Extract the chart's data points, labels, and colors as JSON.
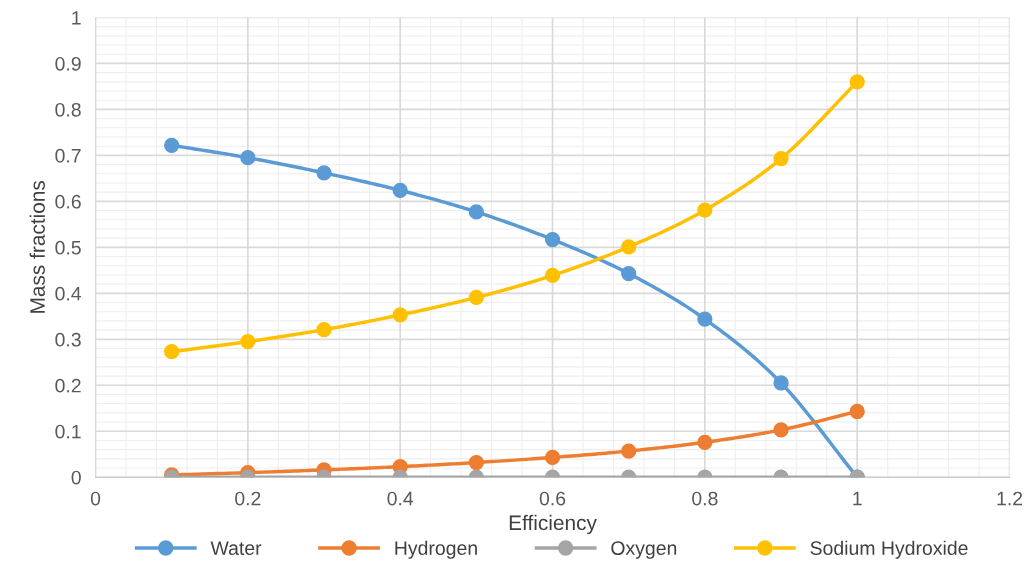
{
  "chart_data": {
    "type": "line",
    "xlabel": "Efficiency",
    "ylabel": "Mass fractions",
    "x": [
      0.1,
      0.2,
      0.3,
      0.4,
      0.5,
      0.6,
      0.7,
      0.8,
      0.9,
      1.0
    ],
    "series": [
      {
        "name": "Water",
        "color": "#5b9bd5",
        "values": [
          0.722,
          0.695,
          0.662,
          0.624,
          0.577,
          0.517,
          0.443,
          0.344,
          0.205,
          0
        ]
      },
      {
        "name": "Hydrogen",
        "color": "#ed7d31",
        "values": [
          0.005,
          0.01,
          0.016,
          0.023,
          0.032,
          0.043,
          0.057,
          0.076,
          0.103,
          0.143
        ]
      },
      {
        "name": "Oxygen",
        "color": "#a5a5a5",
        "values": [
          0,
          0,
          0,
          0,
          0,
          0,
          0,
          0,
          0,
          0
        ]
      },
      {
        "name": "Sodium Hydroxide",
        "color": "#ffc000",
        "values": [
          0.273,
          0.295,
          0.321,
          0.353,
          0.391,
          0.439,
          0.501,
          0.581,
          0.693,
          0.86
        ]
      }
    ],
    "xlim": [
      0,
      1.2
    ],
    "xticks": [
      0,
      {
        "value": 0.2,
        "label": "0.2"
      },
      {
        "value": 0.4,
        "label": "0.4"
      },
      {
        "value": 0.6,
        "label": "0.6"
      },
      {
        "value": 0.8,
        "label": "0.8"
      },
      1,
      {
        "value": 1.2,
        "label": "1.2"
      }
    ],
    "ylim": [
      0,
      1
    ],
    "yticks": [
      0,
      {
        "value": 0.1,
        "label": "0.1"
      },
      {
        "value": 0.2,
        "label": "0.2"
      },
      {
        "value": 0.3,
        "label": "0.3"
      },
      {
        "value": 0.4,
        "label": "0.4"
      },
      {
        "value": 0.5,
        "label": "0.5"
      },
      {
        "value": 0.6,
        "label": "0.6"
      },
      {
        "value": 0.7,
        "label": "0.7"
      },
      {
        "value": 0.8,
        "label": "0.8"
      },
      {
        "value": 0.9,
        "label": "0.9"
      },
      1
    ],
    "grid": true,
    "legend": "bottom",
    "marker": "circle",
    "line_style": "solid"
  }
}
